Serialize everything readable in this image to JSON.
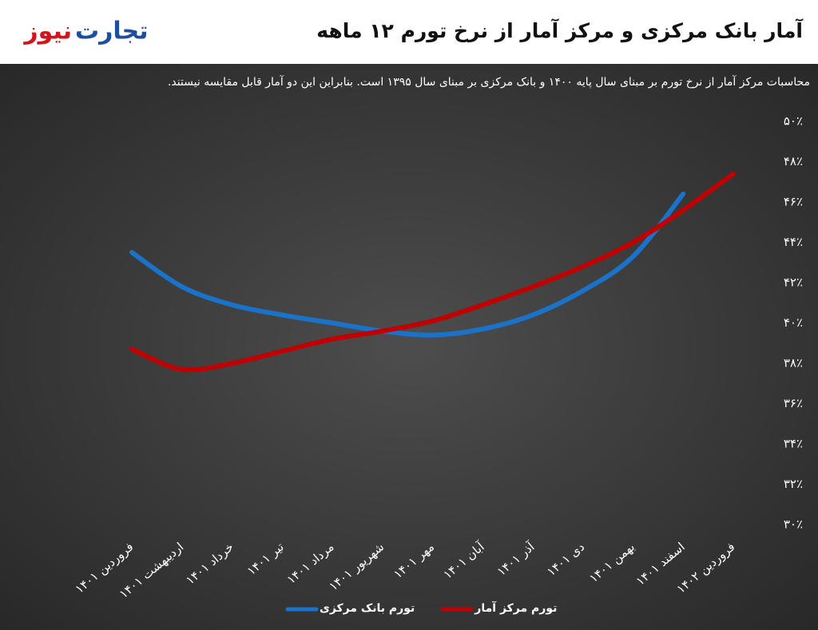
{
  "logo": {
    "first": "تجارت",
    "second": "نیوز"
  },
  "chart_data": {
    "type": "line",
    "title": "آمار بانک مرکزی و مرکز آمار از نرخ تورم ۱۲ ماهه",
    "subtitle": "محاسبات مرکز آمار از نرخ تورم بر مبنای سال پایه ۱۴۰۰ و بانک مرکزی بر مبنای سال ۱۳۹۵ است. بنابراین این دو آمار قابل مقایسه نیستند.",
    "categories": [
      "فروردین ۱۴۰۱",
      "اردیبهشت ۱۴۰۱",
      "خرداد ۱۴۰۱",
      "تیر ۱۴۰۱",
      "مرداد ۱۴۰۱",
      "شهریور ۱۴۰۱",
      "مهر ۱۴۰۱",
      "آبان ۱۴۰۱",
      "آذر ۱۴۰۱",
      "دی ۱۴۰۱",
      "بهمن ۱۴۰۱",
      "اسفند ۱۴۰۱",
      "فروردین ۱۴۰۲"
    ],
    "series": [
      {
        "name": "تورم بانک مرکزی",
        "color": "#1a73c8",
        "values": [
          43.5,
          41.8,
          40.9,
          40.4,
          40.0,
          39.6,
          39.4,
          39.7,
          40.4,
          41.6,
          43.3,
          46.4,
          null
        ]
      },
      {
        "name": "تورم مرکز آمار",
        "color": "#c00000",
        "values": [
          38.7,
          37.7,
          38.0,
          38.6,
          39.2,
          39.6,
          40.1,
          40.9,
          41.8,
          42.8,
          44.0,
          45.6,
          47.4
        ]
      }
    ],
    "ylim": [
      30,
      50
    ],
    "yticks": [
      {
        "value": 30,
        "label": "۳۰٪"
      },
      {
        "value": 32,
        "label": "۳۲٪"
      },
      {
        "value": 34,
        "label": "۳۴٪"
      },
      {
        "value": 36,
        "label": "۳۶٪"
      },
      {
        "value": 38,
        "label": "۳۸٪"
      },
      {
        "value": 40,
        "label": "۴۰٪"
      },
      {
        "value": 42,
        "label": "۴۲٪"
      },
      {
        "value": 44,
        "label": "۴۴٪"
      },
      {
        "value": 46,
        "label": "۴۶٪"
      },
      {
        "value": 48,
        "label": "۴۸٪"
      },
      {
        "value": 50,
        "label": "۵۰٪"
      }
    ],
    "grid": false,
    "legend": "bottom"
  }
}
